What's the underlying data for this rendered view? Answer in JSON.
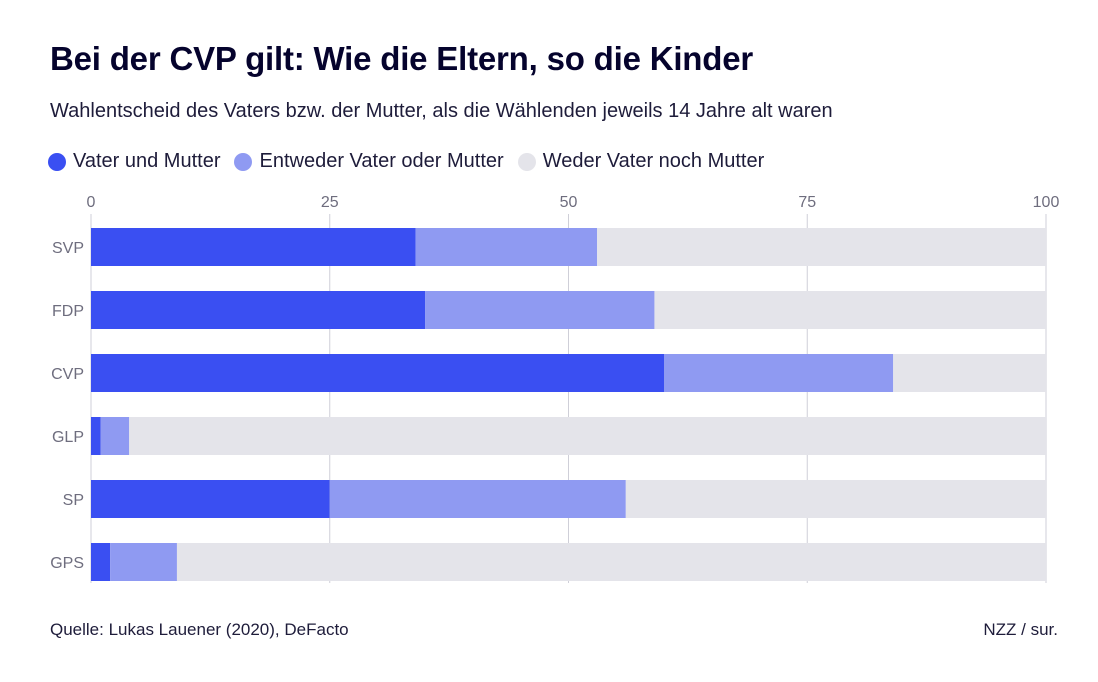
{
  "header": {
    "title": "Bei der CVP gilt: Wie die Eltern, so die Kinder",
    "subtitle": "Wahlentscheid des Vaters bzw. der Mutter, als die Wählenden jeweils 14 Jahre alt waren"
  },
  "legend": [
    {
      "label": "Vater und Mutter",
      "color": "#3a4ff2"
    },
    {
      "label": "Entweder Vater oder Mutter",
      "color": "#8f9af2"
    },
    {
      "label": "Weder Vater noch Mutter",
      "color": "#e4e4ea"
    }
  ],
  "chart_data": {
    "type": "bar",
    "orientation": "horizontal",
    "stacked": true,
    "categories": [
      "SVP",
      "FDP",
      "CVP",
      "GLP",
      "SP",
      "GPS"
    ],
    "series": [
      {
        "name": "Vater und Mutter",
        "values": [
          34,
          35,
          60,
          1,
          25,
          2
        ]
      },
      {
        "name": "Entweder Vater oder Mutter",
        "values": [
          19,
          24,
          24,
          3,
          31,
          7
        ]
      },
      {
        "name": "Weder Vater noch Mutter",
        "values": [
          47,
          41,
          16,
          96,
          44,
          91
        ]
      }
    ],
    "xlim": [
      0,
      100
    ],
    "xticks": [
      0,
      25,
      50,
      75,
      100
    ],
    "title": "Bei der CVP gilt: Wie die Eltern, so die Kinder",
    "xlabel": "",
    "ylabel": "",
    "grid": true,
    "legend_position": "top-left"
  },
  "footer": {
    "source": "Quelle: Lukas Lauener (2020), DeFacto",
    "credit": "NZZ / sur."
  }
}
